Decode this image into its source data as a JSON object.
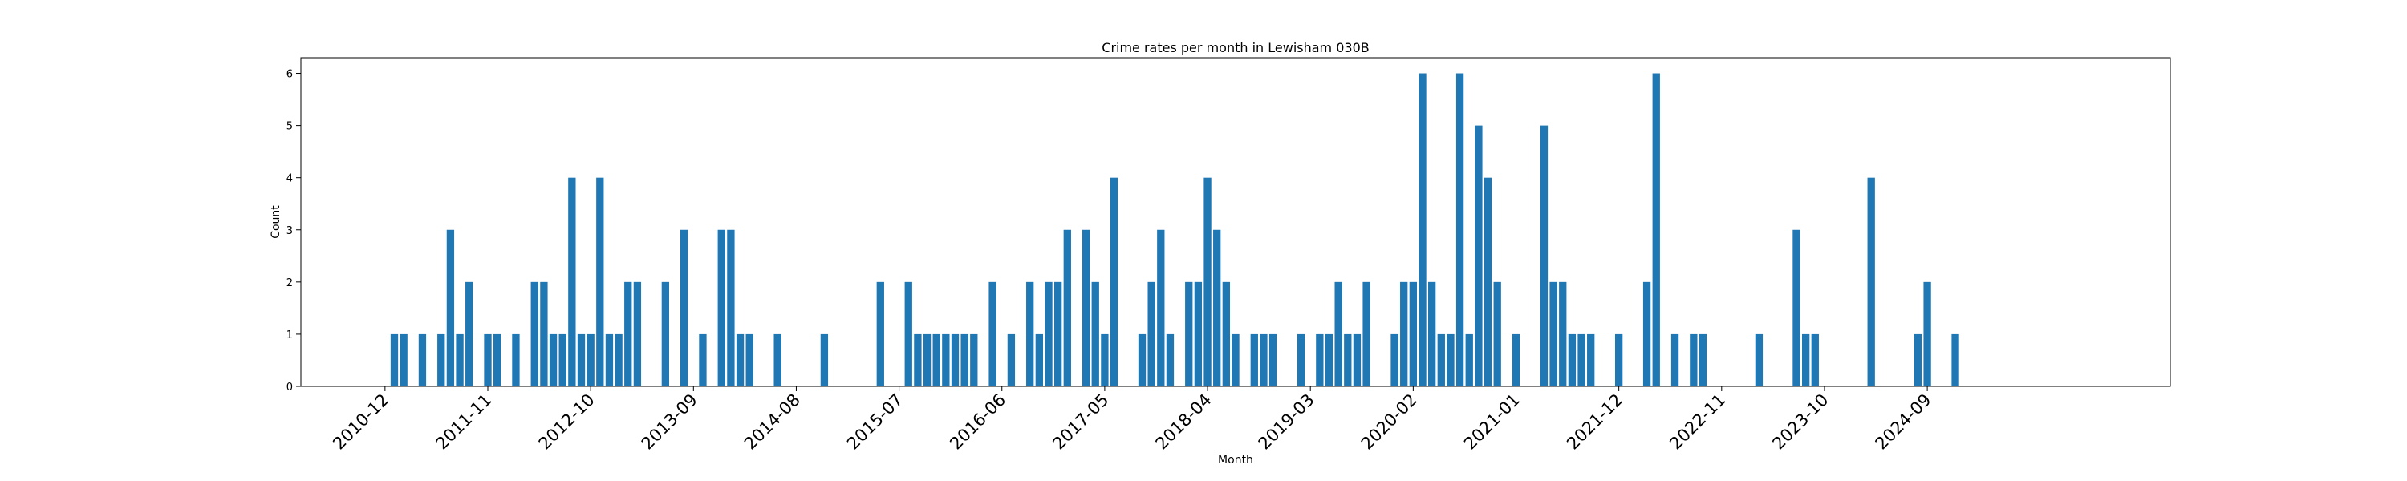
{
  "chart_data": {
    "type": "bar",
    "title": "Crime rates per month in Lewisham 030B",
    "xlabel": "Month",
    "ylabel": "Count",
    "ylim": [
      0,
      6.3
    ],
    "yticks": [
      0,
      1,
      2,
      3,
      4,
      5,
      6
    ],
    "xlim": [
      "2010-03",
      "2026-11"
    ],
    "xticks": [
      "2010-12",
      "2011-11",
      "2012-10",
      "2013-09",
      "2014-08",
      "2015-07",
      "2016-06",
      "2017-05",
      "2018-04",
      "2019-03",
      "2020-02",
      "2021-01",
      "2021-12",
      "2022-11",
      "2023-10",
      "2024-09"
    ],
    "grid": false,
    "legend": "none",
    "bar_color": "#1f77b4",
    "x": [
      "2011-01",
      "2011-02",
      "2011-04",
      "2011-06",
      "2011-07",
      "2011-08",
      "2011-09",
      "2011-11",
      "2011-12",
      "2012-02",
      "2012-04",
      "2012-05",
      "2012-06",
      "2012-07",
      "2012-08",
      "2012-09",
      "2012-10",
      "2012-11",
      "2012-12",
      "2013-01",
      "2013-02",
      "2013-03",
      "2013-06",
      "2013-08",
      "2013-10",
      "2013-12",
      "2014-01",
      "2014-02",
      "2014-03",
      "2014-06",
      "2014-11",
      "2015-05",
      "2015-08",
      "2015-09",
      "2015-10",
      "2015-11",
      "2015-12",
      "2016-01",
      "2016-02",
      "2016-03",
      "2016-05",
      "2016-07",
      "2016-09",
      "2016-10",
      "2016-11",
      "2016-12",
      "2017-01",
      "2017-03",
      "2017-04",
      "2017-05",
      "2017-06",
      "2017-09",
      "2017-10",
      "2017-11",
      "2017-12",
      "2018-02",
      "2018-03",
      "2018-04",
      "2018-05",
      "2018-06",
      "2018-07",
      "2018-09",
      "2018-10",
      "2018-11",
      "2019-02",
      "2019-04",
      "2019-05",
      "2019-06",
      "2019-07",
      "2019-08",
      "2019-09",
      "2019-12",
      "2020-01",
      "2020-02",
      "2020-03",
      "2020-04",
      "2020-05",
      "2020-06",
      "2020-07",
      "2020-08",
      "2020-09",
      "2020-10",
      "2020-11",
      "2021-01",
      "2021-04",
      "2021-05",
      "2021-06",
      "2021-07",
      "2021-08",
      "2021-09",
      "2021-12",
      "2022-03",
      "2022-04",
      "2022-06",
      "2022-08",
      "2022-09",
      "2023-03",
      "2023-07",
      "2023-08",
      "2023-09",
      "2024-03",
      "2024-08",
      "2024-09",
      "2024-12"
    ],
    "values": [
      1,
      1,
      1,
      1,
      3,
      1,
      2,
      1,
      1,
      1,
      2,
      2,
      1,
      1,
      4,
      1,
      1,
      4,
      1,
      1,
      2,
      2,
      2,
      3,
      1,
      3,
      3,
      1,
      1,
      1,
      1,
      2,
      2,
      1,
      1,
      1,
      1,
      1,
      1,
      1,
      2,
      1,
      2,
      1,
      2,
      2,
      3,
      3,
      2,
      1,
      4,
      1,
      2,
      3,
      1,
      2,
      2,
      4,
      3,
      2,
      1,
      1,
      1,
      1,
      1,
      1,
      1,
      2,
      1,
      1,
      2,
      1,
      2,
      2,
      6,
      2,
      1,
      1,
      6,
      1,
      5,
      4,
      2,
      1,
      5,
      2,
      2,
      1,
      1,
      1,
      1,
      2,
      6,
      1,
      1,
      1,
      1,
      3,
      1,
      1,
      4,
      1,
      2,
      1
    ]
  }
}
